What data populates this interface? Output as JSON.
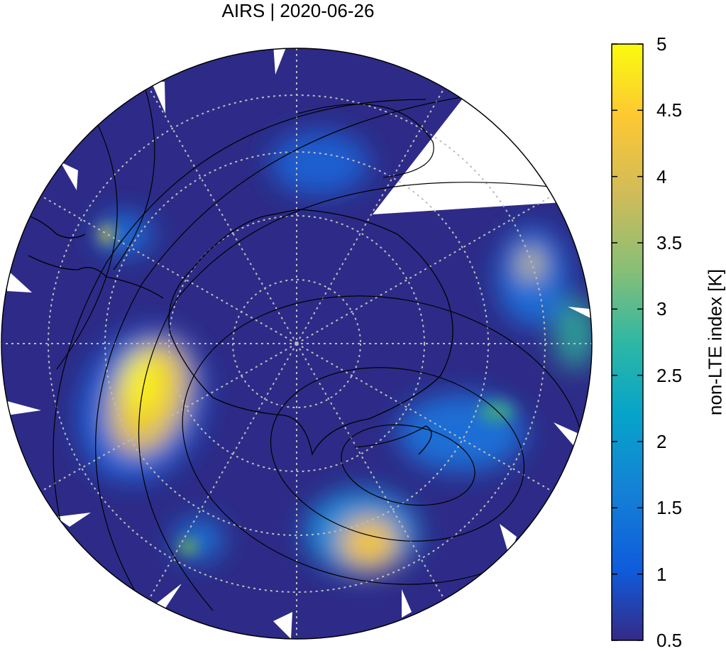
{
  "title": "AIRS | 2020-06-26",
  "colorbar": {
    "label": "non-LTE index [K]",
    "min": 0.5,
    "max": 5,
    "ticks": [
      "5",
      "4.5",
      "4",
      "3.5",
      "3",
      "2.5",
      "2",
      "1.5",
      "1",
      "0.5"
    ]
  },
  "map": {
    "projection": "south polar stereographic",
    "background_color": "#2d2b87",
    "grid": "dotted",
    "coastlines": true,
    "contours": true
  },
  "colors": {
    "low": "#2d2b87",
    "mid_blue": "#1f63d8",
    "cyan": "#12a8c4",
    "green": "#7cbf4a",
    "orange": "#f2b733",
    "high": "#f9f01c"
  }
}
